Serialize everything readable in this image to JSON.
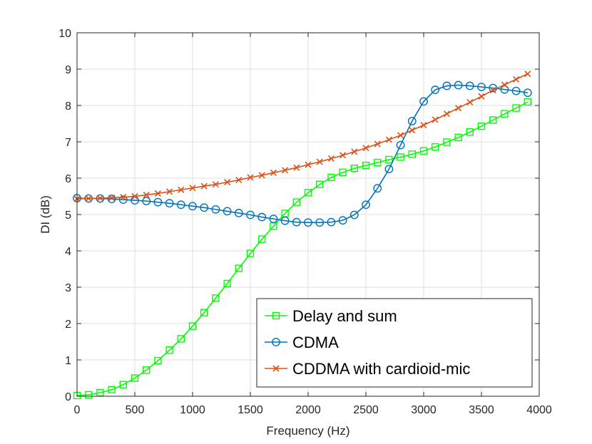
{
  "chart_data": {
    "type": "line",
    "title": "",
    "xlabel": "Frequency (Hz)",
    "ylabel": "DI (dB)",
    "xlim": [
      0,
      4000
    ],
    "ylim": [
      0,
      10
    ],
    "xticks": [
      0,
      500,
      1000,
      1500,
      2000,
      2500,
      3000,
      3500,
      4000
    ],
    "yticks": [
      0,
      1,
      2,
      3,
      4,
      5,
      6,
      7,
      8,
      9,
      10
    ],
    "grid": true,
    "legend_position": "bottom-right",
    "x": [
      0,
      100,
      200,
      300,
      400,
      500,
      600,
      700,
      800,
      900,
      1000,
      1100,
      1200,
      1300,
      1400,
      1500,
      1600,
      1700,
      1800,
      1900,
      2000,
      2100,
      2200,
      2300,
      2400,
      2500,
      2600,
      2700,
      2800,
      2900,
      3000,
      3100,
      3200,
      3300,
      3400,
      3500,
      3600,
      3700,
      3800,
      3900
    ],
    "series": [
      {
        "name": "Delay and sum",
        "color": "#00ff00",
        "marker": "square",
        "values": [
          0.02,
          0.04,
          0.1,
          0.18,
          0.32,
          0.5,
          0.72,
          0.98,
          1.27,
          1.58,
          1.93,
          2.3,
          2.7,
          3.1,
          3.52,
          3.93,
          4.32,
          4.68,
          5.03,
          5.34,
          5.6,
          5.83,
          6.02,
          6.16,
          6.27,
          6.35,
          6.43,
          6.51,
          6.58,
          6.66,
          6.75,
          6.86,
          6.99,
          7.12,
          7.27,
          7.43,
          7.6,
          7.77,
          7.93,
          8.1
        ]
      },
      {
        "name": "CDMA",
        "color": "#0072bd",
        "marker": "circle",
        "values": [
          5.45,
          5.44,
          5.44,
          5.43,
          5.41,
          5.39,
          5.37,
          5.34,
          5.31,
          5.27,
          5.23,
          5.19,
          5.14,
          5.09,
          5.04,
          4.99,
          4.93,
          4.88,
          4.83,
          4.79,
          4.78,
          4.78,
          4.79,
          4.84,
          4.99,
          5.27,
          5.72,
          6.25,
          6.91,
          7.57,
          8.11,
          8.43,
          8.54,
          8.56,
          8.54,
          8.51,
          8.48,
          8.44,
          8.4,
          8.35
        ]
      },
      {
        "name": "CDDMA with cardioid-mic",
        "color": "#d95319",
        "marker": "x",
        "values": [
          5.43,
          5.44,
          5.45,
          5.46,
          5.48,
          5.5,
          5.54,
          5.58,
          5.63,
          5.68,
          5.73,
          5.78,
          5.83,
          5.89,
          5.95,
          6.02,
          6.08,
          6.15,
          6.22,
          6.29,
          6.37,
          6.45,
          6.54,
          6.63,
          6.73,
          6.83,
          6.94,
          7.06,
          7.18,
          7.32,
          7.46,
          7.61,
          7.77,
          7.93,
          8.09,
          8.25,
          8.42,
          8.57,
          8.72,
          8.87
        ]
      }
    ]
  }
}
